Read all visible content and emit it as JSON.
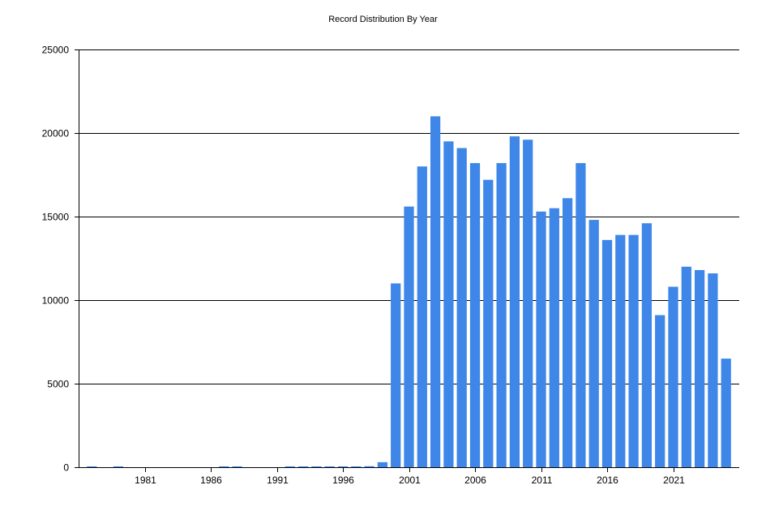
{
  "chart_data": {
    "type": "bar",
    "title": "Record Distribution By Year",
    "xlabel": "",
    "ylabel": "",
    "x": [
      1977,
      1979,
      1987,
      1988,
      1992,
      1993,
      1994,
      1995,
      1996,
      1997,
      1998,
      1999,
      2000,
      2001,
      2002,
      2003,
      2004,
      2005,
      2006,
      2007,
      2008,
      2009,
      2010,
      2011,
      2012,
      2013,
      2014,
      2015,
      2016,
      2017,
      2018,
      2019,
      2020,
      2021,
      2022,
      2023,
      2024,
      2025
    ],
    "values": [
      50,
      50,
      50,
      50,
      50,
      50,
      50,
      50,
      50,
      50,
      60,
      300,
      11000,
      15600,
      18000,
      21000,
      19500,
      19100,
      18200,
      17200,
      18200,
      19800,
      19600,
      15300,
      15500,
      16100,
      18200,
      14800,
      13600,
      13900,
      13900,
      14600,
      9100,
      10800,
      12000,
      11800,
      11600,
      6500
    ],
    "xlim": [
      1976,
      2026
    ],
    "ylim": [
      0,
      25000
    ],
    "xticks": [
      "1981",
      "1986",
      "1991",
      "1996",
      "2001",
      "2006",
      "2011",
      "2016",
      "2021"
    ],
    "yticks": [
      "0",
      "5000",
      "10000",
      "15000",
      "20000",
      "25000"
    ],
    "grid": "horizontal",
    "legend": "none",
    "bar_color": "#3e86e8"
  }
}
